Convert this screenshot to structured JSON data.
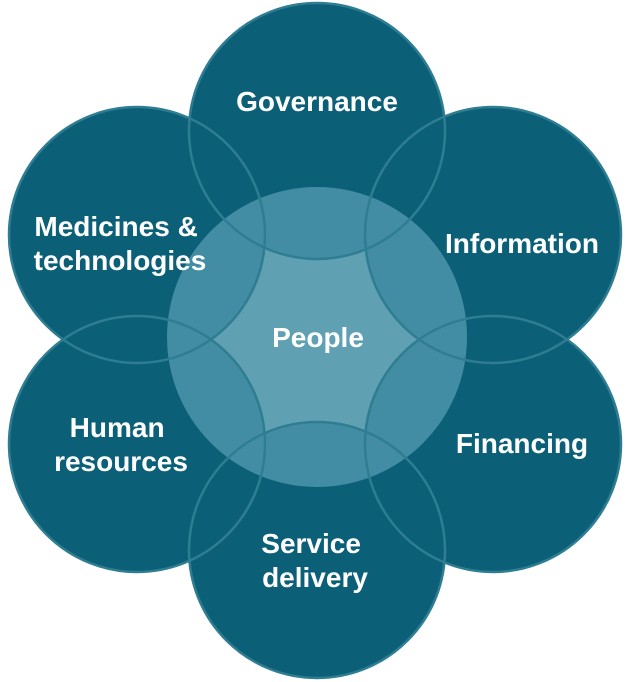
{
  "center": {
    "label": "People"
  },
  "petals": [
    {
      "id": "governance",
      "lines": [
        "Governance"
      ]
    },
    {
      "id": "information",
      "lines": [
        "Information"
      ]
    },
    {
      "id": "financing",
      "lines": [
        "Financing"
      ]
    },
    {
      "id": "service-delivery",
      "lines": [
        "Service",
        "delivery"
      ]
    },
    {
      "id": "human-resources",
      "lines": [
        "Human",
        "resources"
      ]
    },
    {
      "id": "medicines-technologies",
      "lines": [
        "Medicines &",
        "technologies"
      ]
    }
  ],
  "colors": {
    "petal": "#0b6078",
    "petal_outline": "#2f7d92",
    "center": "#4a93a8",
    "text": "#ffffff"
  }
}
